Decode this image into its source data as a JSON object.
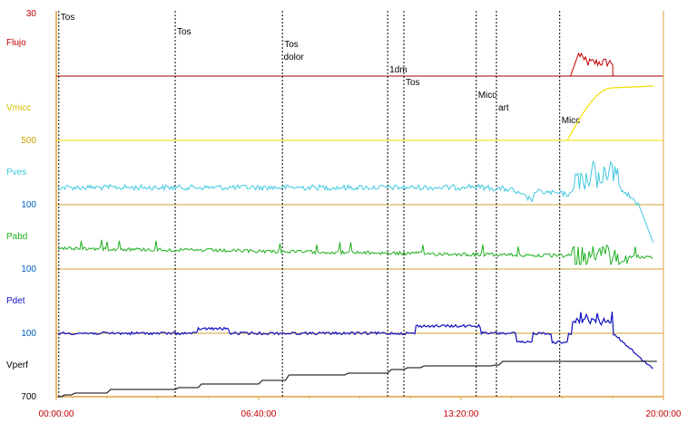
{
  "chart_data": {
    "type": "line",
    "xaxis": {
      "range": [
        "00:00:00",
        "20:00:00"
      ],
      "tick_labels": [
        "00:00:00",
        "06:40:00",
        "13:20:00",
        "20:00:00"
      ]
    },
    "channels": [
      {
        "name": "Flujo",
        "scale_label": "30",
        "color": "#c00000"
      },
      {
        "name": "Vmicc",
        "scale_label": "500",
        "color": "#f0e000"
      },
      {
        "name": "Pves",
        "scale_label": "100",
        "color": "#40c8e0"
      },
      {
        "name": "Pabd",
        "scale_label": "100",
        "color": "#20b020"
      },
      {
        "name": "Pdet",
        "scale_label": "100",
        "color": "#1010c0"
      },
      {
        "name": "Vperf",
        "scale_label": "700",
        "color": "#000000"
      }
    ],
    "events": [
      {
        "time": "00:05:00",
        "label": "Tos"
      },
      {
        "time": "03:55:00",
        "label": "Tos"
      },
      {
        "time": "07:27:00",
        "label": "Tos"
      },
      {
        "time": "07:33:00",
        "label": "dolor"
      },
      {
        "time": "10:55:00",
        "label": "1dm"
      },
      {
        "time": "11:27:00",
        "label": "Tos"
      },
      {
        "time": "13:50:00",
        "label": "Micc"
      },
      {
        "time": "14:30:00",
        "label": "art"
      },
      {
        "time": "16:35:00",
        "label": "Micc"
      }
    ],
    "grid": false,
    "legend": "left"
  }
}
